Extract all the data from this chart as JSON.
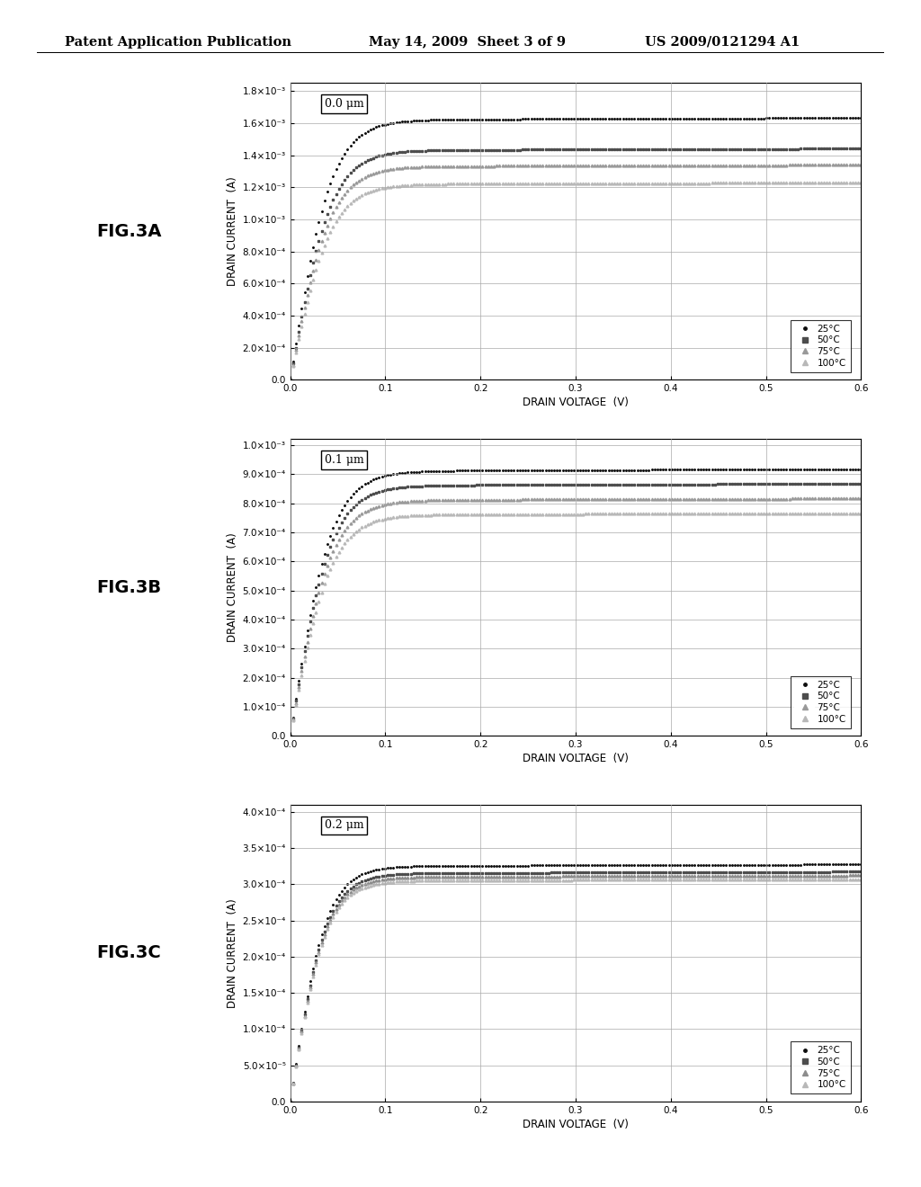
{
  "header_left": "Patent Application Publication",
  "header_mid": "May 14, 2009  Sheet 3 of 9",
  "header_right": "US 2009/0121294 A1",
  "background_color": "#ffffff",
  "fig_labels": [
    "FIG.3A",
    "FIG.3B",
    "FIG.3C"
  ],
  "subplot_labels": [
    "0.0 μm",
    "0.1 μm",
    "0.2 μm"
  ],
  "xlabel": "DRAIN VOLTAGE  (V)",
  "ylabel": "DRAIN CURRENT  (A)",
  "temperatures": [
    "25°C",
    "50°C",
    "75°C",
    "100°C"
  ],
  "xmin": 0.0,
  "xmax": 0.6,
  "plots": [
    {
      "ymax": 0.0018,
      "ylim": 0.00185,
      "yticks": [
        0.0,
        0.0002,
        0.0004,
        0.0006,
        0.0008,
        0.001,
        0.0012,
        0.0014,
        0.0016,
        0.0018
      ],
      "ytick_labels": [
        "0.0",
        "2.0×10⁻⁴",
        "4.0×10⁻⁴",
        "6.0×10⁻⁴",
        "8.0×10⁻⁴",
        "1.0×10⁻³",
        "1.2×10⁻³",
        "1.4×10⁻³",
        "1.6×10⁻³",
        "1.8×10⁻³"
      ],
      "sat_currents": [
        0.00162,
        0.00143,
        0.00133,
        0.00122
      ],
      "knee_factors": [
        3.5,
        3.5,
        3.5,
        3.5
      ],
      "gray_levels": [
        0.05,
        0.3,
        0.6,
        0.72
      ]
    },
    {
      "ymax": 0.001,
      "ylim": 0.00102,
      "yticks": [
        0.0,
        0.0001,
        0.0002,
        0.0003,
        0.0004,
        0.0005,
        0.0006,
        0.0007,
        0.0008,
        0.0009,
        0.001
      ],
      "ytick_labels": [
        "0.0",
        "1.0×10⁻⁴",
        "2.0×10⁻⁴",
        "3.0×10⁻⁴",
        "4.0×10⁻⁴",
        "5.0×10⁻⁴",
        "6.0×10⁻⁴",
        "7.0×10⁻⁴",
        "8.0×10⁻⁴",
        "9.0×10⁻⁴",
        "1.0×10⁻³"
      ],
      "sat_currents": [
        0.00091,
        0.00086,
        0.00081,
        0.00076
      ],
      "knee_factors": [
        3.5,
        3.5,
        3.5,
        3.5
      ],
      "gray_levels": [
        0.05,
        0.3,
        0.6,
        0.72
      ]
    },
    {
      "ymax": 0.0004,
      "ylim": 0.00041,
      "yticks": [
        0.0,
        5e-05,
        0.0001,
        0.00015,
        0.0002,
        0.00025,
        0.0003,
        0.00035,
        0.0004
      ],
      "ytick_labels": [
        "0.0",
        "5.0×10⁻⁵",
        "1.0×10⁻⁴",
        "1.5×10⁻⁴",
        "2.0×10⁻⁴",
        "2.5×10⁻⁴",
        "3.0×10⁻⁴",
        "3.5×10⁻⁴",
        "4.0×10⁻⁴"
      ],
      "sat_currents": [
        0.000325,
        0.000315,
        0.00031,
        0.000305
      ],
      "knee_factors": [
        4.0,
        4.0,
        4.0,
        4.0
      ],
      "gray_levels": [
        0.05,
        0.3,
        0.55,
        0.72
      ]
    }
  ],
  "marker_styles_per_temp": [
    ".",
    "s",
    "^",
    "^"
  ],
  "legend_fontsize": 7.5,
  "axis_fontsize": 8.5,
  "tick_fontsize": 7.5,
  "fig_label_fontsize": 14
}
